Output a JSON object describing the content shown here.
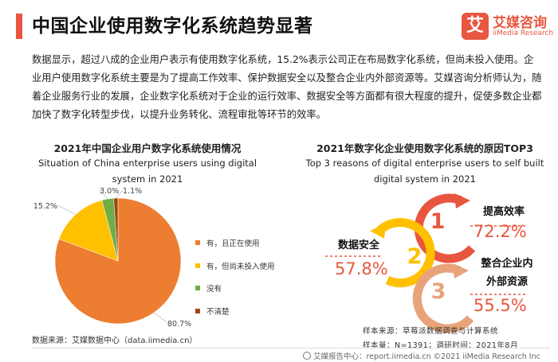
{
  "header": {
    "title": "中国企业使用数字化系统趋势显著",
    "logo_cn": "艾媒咨询",
    "logo_en": "iiMedia Research",
    "logo_mark": "艾"
  },
  "intro": "数据显示，超过八成的企业用户表示有使用数字化系统，15.2%表示公司正在布局数字化系统，但尚未投入使用。企业用户使用数字化系统主要是为了提高工作效率、保护数据安全以及整合企业内外部资源等。艾媒咨询分析师认为，随着企业服务行业的发展，企业数字化系统对于企业的运行效率、数据安全等方面都有很大程度的提升，促使多数企业都加快了数字化转型步伐，以提升业务转化、流程审批等环节的效率。",
  "chart_data": [
    {
      "type": "pie",
      "title": "2021年中国企业用户数字化系统使用情况",
      "subtitle": "Situation of China enterprise users using digital system in 2021",
      "slices": [
        {
          "label": "有，且正在使用",
          "value": 80.7,
          "value_label": "80.7%",
          "color": "#ed7d31"
        },
        {
          "label": "有，但尚未投入使用",
          "value": 15.2,
          "value_label": "15.2%",
          "color": "#ffc000"
        },
        {
          "label": "没有",
          "value": 3.0,
          "value_label": "3.0%",
          "color": "#70ad47"
        },
        {
          "label": "不清楚",
          "value": 1.1,
          "value_label": "1.1%",
          "color": "#9e480e"
        }
      ],
      "legend_position": "right"
    },
    {
      "type": "table",
      "title": "2021年数字化企业使用数字化系统的原因TOP3",
      "subtitle": "Top 3 reasons of digital enterprise users to self built digital system in 2021",
      "rows": [
        {
          "rank": "1",
          "label": "提高效率",
          "value": 72.2,
          "value_label": "72.2%"
        },
        {
          "rank": "2",
          "label": "数据安全",
          "value": 57.8,
          "value_label": "57.8%"
        },
        {
          "rank": "3",
          "label": "整合企业内外部资源",
          "value": 55.5,
          "value_label": "55.5%"
        }
      ]
    }
  ],
  "reasons_display": {
    "label_1": "提高效率",
    "label_2": "数据安全",
    "label_3a": "整合企业内",
    "label_3b": "外部资源"
  },
  "source_left": "数据来源：艾媒数据中心（data.iimedia.cn）",
  "meta": {
    "sample_source": "样本来源：草莓派数据调查与计算系统",
    "sample_size": "样本量：N=1391；调研时间：2021年8月"
  },
  "footer": "艾媒报告中心：report.iimedia.cn   ©2021  iiMedia Research  Inc",
  "colors": {
    "accent": "#e8563f",
    "arc_1": "#e8563f",
    "arc_2": "#ffc000",
    "arc_3": "#e8a37a"
  }
}
